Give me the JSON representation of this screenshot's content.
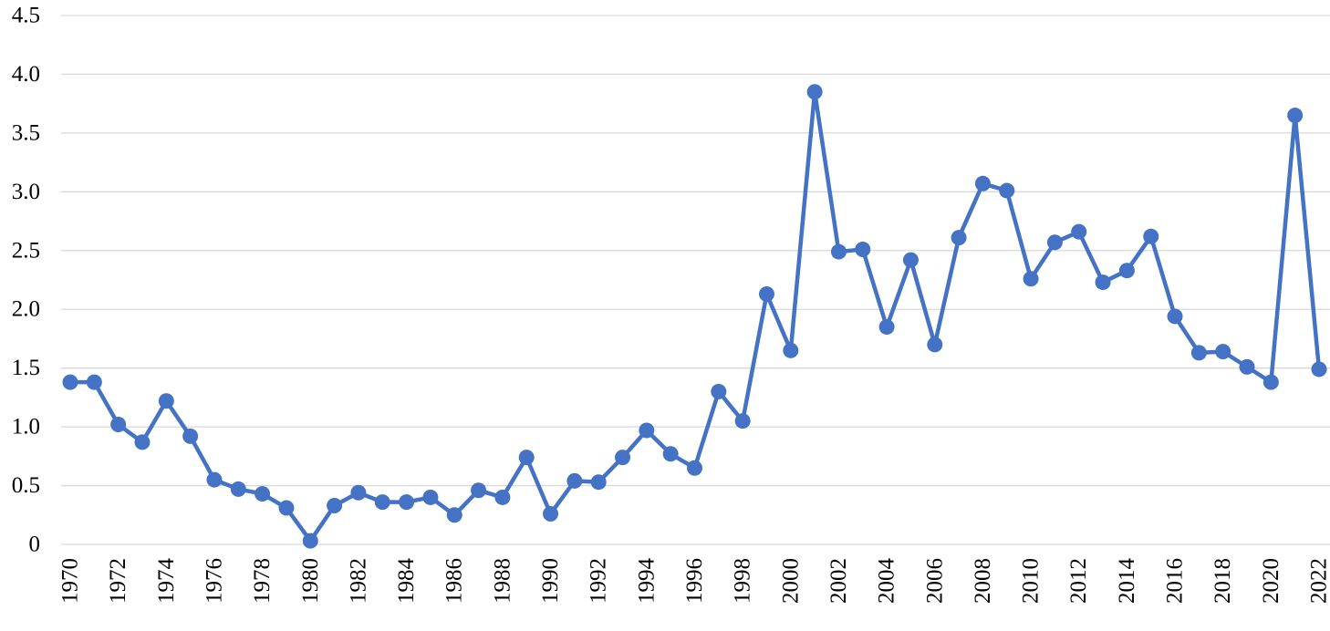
{
  "chart_data": {
    "type": "line",
    "title": "",
    "xlabel": "",
    "ylabel": "",
    "x": [
      1970,
      1971,
      1972,
      1973,
      1974,
      1975,
      1976,
      1977,
      1978,
      1979,
      1980,
      1981,
      1982,
      1983,
      1984,
      1985,
      1986,
      1987,
      1988,
      1989,
      1990,
      1991,
      1992,
      1993,
      1994,
      1995,
      1996,
      1997,
      1998,
      1999,
      2000,
      2001,
      2002,
      2003,
      2004,
      2005,
      2006,
      2007,
      2008,
      2009,
      2010,
      2011,
      2012,
      2013,
      2014,
      2015,
      2016,
      2017,
      2018,
      2019,
      2020,
      2021,
      2022
    ],
    "xtick_labels": [
      "1970",
      "1972",
      "1974",
      "1976",
      "1978",
      "1980",
      "1982",
      "1984",
      "1986",
      "1988",
      "1990",
      "1992",
      "1994",
      "1996",
      "1998",
      "2000",
      "2002",
      "2004",
      "2006",
      "2008",
      "2010",
      "2012",
      "2014",
      "2016",
      "2018",
      "2020",
      "2022"
    ],
    "series": [
      {
        "values": [
          1.38,
          1.38,
          1.02,
          0.87,
          1.22,
          0.92,
          0.55,
          0.47,
          0.43,
          0.31,
          0.03,
          0.33,
          0.44,
          0.36,
          0.36,
          0.4,
          0.25,
          0.46,
          0.4,
          0.74,
          0.26,
          0.54,
          0.53,
          0.74,
          0.97,
          0.77,
          0.65,
          1.3,
          1.05,
          2.13,
          1.65,
          3.85,
          2.49,
          2.51,
          1.85,
          2.42,
          1.7,
          2.61,
          3.07,
          3.01,
          2.26,
          2.57,
          2.66,
          2.23,
          2.33,
          2.62,
          1.94,
          1.63,
          1.64,
          1.51,
          1.38,
          3.65,
          1.49
        ]
      }
    ],
    "ylim": [
      0,
      4.5
    ],
    "yticks": [
      "0",
      "0.5",
      "1.0",
      "1.5",
      "2.0",
      "2.5",
      "3.0",
      "3.5",
      "4.0",
      "4.5"
    ],
    "ytick_values": [
      0,
      0.5,
      1.0,
      1.5,
      2.0,
      2.5,
      3.0,
      3.5,
      4.0,
      4.5
    ],
    "grid": true,
    "legend": "none",
    "line_color": "#4472c4"
  }
}
